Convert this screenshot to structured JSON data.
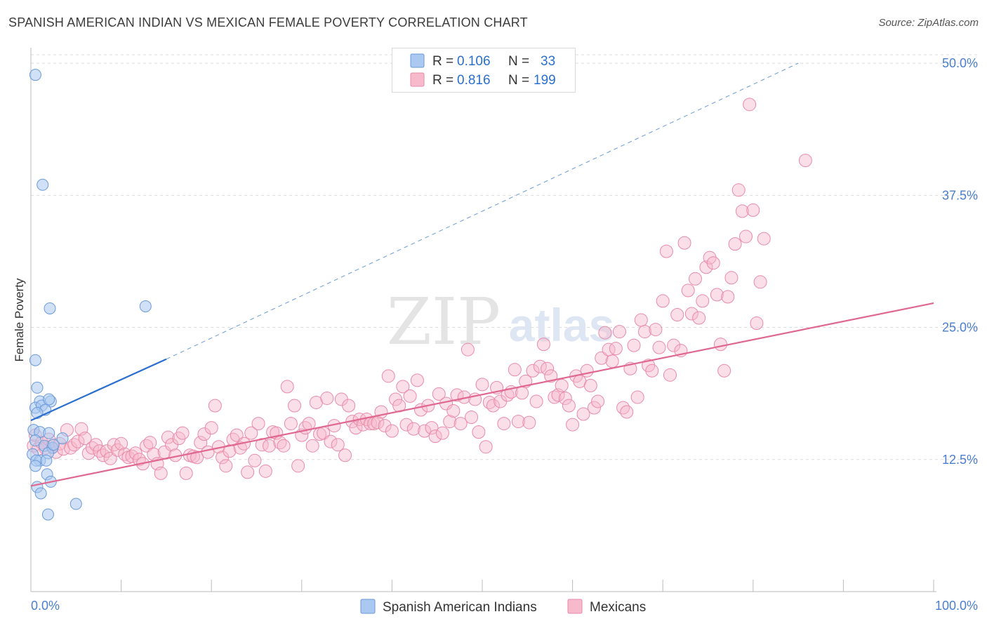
{
  "title": "SPANISH AMERICAN INDIAN VS MEXICAN FEMALE POVERTY CORRELATION CHART",
  "source": "Source: ZipAtlas.com",
  "watermark": {
    "zip": "ZIP",
    "atlas": "atlas"
  },
  "legend": {
    "rows": [
      {
        "r_label": "R =",
        "r_value": "0.106",
        "n_label": "N =",
        "n_value": "33"
      },
      {
        "r_label": "R =",
        "r_value": "0.816",
        "n_label": "N =",
        "n_value": "199"
      }
    ]
  },
  "colors": {
    "blue_fill": "#aac8f0",
    "blue_stroke": "#6a9ad8",
    "blue_line": "#2a6fd0",
    "pink_fill": "#f7b9cc",
    "pink_stroke": "#e98aa8",
    "pink_line": "#e06890",
    "tick_label": "#4a7fcf",
    "grid": "#dcdcdc"
  },
  "chart_data": {
    "type": "scatter",
    "title": "SPANISH AMERICAN INDIAN VS MEXICAN FEMALE POVERTY CORRELATION CHART",
    "xlabel": "",
    "ylabel": "Female Poverty",
    "xlim": [
      0,
      100
    ],
    "ylim": [
      0,
      52
    ],
    "x_tick_labels": [
      "0.0%",
      "100.0%"
    ],
    "y_ticks": [
      12.5,
      25.0,
      37.5,
      50.0
    ],
    "y_tick_labels": [
      "12.5%",
      "25.0%",
      "37.5%",
      "50.0%"
    ],
    "grid": true,
    "series": [
      {
        "name": "Spanish American Indians",
        "R": 0.106,
        "N": 33,
        "trend_solid": [
          [
            0,
            16.2
          ],
          [
            15,
            22.0
          ]
        ],
        "trend_dashed": [
          [
            15,
            22.0
          ],
          [
            85,
            50.0
          ]
        ],
        "points": [
          [
            0.5,
            48.9
          ],
          [
            1.3,
            38.5
          ],
          [
            2.1,
            26.8
          ],
          [
            12.7,
            27.0
          ],
          [
            0.5,
            21.9
          ],
          [
            0.7,
            19.3
          ],
          [
            1.0,
            18.0
          ],
          [
            2.2,
            18.0
          ],
          [
            0.5,
            17.4
          ],
          [
            1.2,
            17.6
          ],
          [
            1.6,
            17.2
          ],
          [
            2.0,
            18.2
          ],
          [
            0.7,
            16.9
          ],
          [
            0.3,
            15.3
          ],
          [
            1.0,
            15.1
          ],
          [
            2.0,
            15.0
          ],
          [
            3.5,
            14.5
          ],
          [
            0.5,
            14.3
          ],
          [
            1.5,
            13.8
          ],
          [
            2.4,
            13.6
          ],
          [
            0.2,
            13.0
          ],
          [
            1.9,
            13.1
          ],
          [
            1.0,
            12.4
          ],
          [
            0.6,
            12.4
          ],
          [
            1.7,
            12.4
          ],
          [
            0.5,
            11.9
          ],
          [
            1.8,
            11.1
          ],
          [
            2.2,
            10.4
          ],
          [
            0.7,
            9.9
          ],
          [
            1.1,
            9.3
          ],
          [
            5.0,
            8.3
          ],
          [
            1.9,
            7.3
          ],
          [
            2.5,
            13.9
          ]
        ]
      },
      {
        "name": "Mexicans",
        "R": 0.816,
        "N": 199,
        "trend": [
          [
            0,
            10.0
          ],
          [
            100,
            27.3
          ]
        ],
        "points": [
          [
            0.3,
            13.8
          ],
          [
            0.5,
            14.8
          ],
          [
            0.8,
            13.5
          ],
          [
            1.2,
            14.1
          ],
          [
            1.6,
            13.6
          ],
          [
            2.0,
            14.4
          ],
          [
            2.4,
            13.8
          ],
          [
            2.8,
            13.2
          ],
          [
            3.2,
            14.0
          ],
          [
            3.6,
            13.5
          ],
          [
            4.0,
            15.3
          ],
          [
            4.4,
            13.6
          ],
          [
            4.8,
            13.9
          ],
          [
            5.2,
            14.2
          ],
          [
            5.6,
            15.4
          ],
          [
            6.0,
            14.5
          ],
          [
            6.4,
            13.1
          ],
          [
            6.8,
            13.6
          ],
          [
            7.2,
            13.9
          ],
          [
            7.6,
            13.3
          ],
          [
            8.0,
            12.9
          ],
          [
            8.4,
            13.3
          ],
          [
            8.8,
            12.6
          ],
          [
            9.2,
            13.9
          ],
          [
            9.6,
            13.4
          ],
          [
            10.0,
            14.0
          ],
          [
            10.4,
            13.0
          ],
          [
            10.8,
            12.7
          ],
          [
            11.2,
            12.8
          ],
          [
            11.6,
            13.1
          ],
          [
            12.0,
            12.5
          ],
          [
            12.4,
            12.1
          ],
          [
            12.8,
            13.8
          ],
          [
            13.2,
            14.1
          ],
          [
            13.6,
            13.0
          ],
          [
            14.0,
            12.1
          ],
          [
            14.4,
            11.2
          ],
          [
            14.8,
            13.2
          ],
          [
            15.2,
            14.6
          ],
          [
            15.6,
            13.9
          ],
          [
            16.0,
            12.9
          ],
          [
            16.4,
            14.5
          ],
          [
            16.8,
            15.0
          ],
          [
            17.2,
            11.2
          ],
          [
            17.6,
            12.9
          ],
          [
            18.0,
            12.8
          ],
          [
            18.4,
            12.7
          ],
          [
            18.8,
            14.1
          ],
          [
            19.2,
            14.9
          ],
          [
            19.6,
            13.2
          ],
          [
            20.0,
            15.5
          ],
          [
            20.4,
            17.6
          ],
          [
            20.8,
            13.7
          ],
          [
            21.2,
            12.7
          ],
          [
            21.6,
            11.9
          ],
          [
            22.0,
            13.3
          ],
          [
            22.4,
            14.4
          ],
          [
            22.8,
            14.8
          ],
          [
            23.2,
            13.6
          ],
          [
            23.6,
            14.0
          ],
          [
            24.0,
            11.3
          ],
          [
            24.4,
            15.0
          ],
          [
            24.8,
            12.4
          ],
          [
            25.2,
            15.9
          ],
          [
            25.6,
            13.9
          ],
          [
            26.0,
            11.4
          ],
          [
            26.4,
            13.8
          ],
          [
            26.8,
            15.1
          ],
          [
            27.2,
            15.0
          ],
          [
            27.6,
            14.1
          ],
          [
            28.0,
            13.8
          ],
          [
            28.4,
            19.4
          ],
          [
            28.8,
            15.9
          ],
          [
            29.2,
            17.6
          ],
          [
            29.6,
            11.9
          ],
          [
            30.0,
            14.8
          ],
          [
            30.4,
            15.5
          ],
          [
            30.8,
            15.9
          ],
          [
            31.2,
            13.8
          ],
          [
            31.6,
            17.9
          ],
          [
            32.0,
            14.9
          ],
          [
            32.4,
            15.0
          ],
          [
            32.8,
            18.3
          ],
          [
            33.2,
            14.2
          ],
          [
            33.6,
            15.7
          ],
          [
            34.0,
            13.9
          ],
          [
            34.4,
            18.2
          ],
          [
            34.8,
            12.9
          ],
          [
            35.2,
            17.6
          ],
          [
            35.6,
            16.1
          ],
          [
            36.0,
            15.5
          ],
          [
            36.4,
            16.3
          ],
          [
            36.8,
            15.8
          ],
          [
            37.2,
            16.3
          ],
          [
            37.6,
            15.9
          ],
          [
            38.0,
            15.9
          ],
          [
            38.4,
            16.0
          ],
          [
            38.8,
            17.0
          ],
          [
            39.2,
            15.7
          ],
          [
            39.6,
            20.4
          ],
          [
            40.0,
            15.2
          ],
          [
            40.4,
            18.2
          ],
          [
            40.8,
            17.6
          ],
          [
            41.2,
            19.4
          ],
          [
            41.6,
            15.8
          ],
          [
            42.0,
            18.5
          ],
          [
            42.4,
            15.4
          ],
          [
            42.8,
            20.0
          ],
          [
            43.2,
            17.2
          ],
          [
            43.6,
            15.2
          ],
          [
            44.0,
            17.6
          ],
          [
            44.4,
            15.5
          ],
          [
            44.8,
            14.7
          ],
          [
            45.2,
            18.7
          ],
          [
            45.6,
            15.0
          ],
          [
            46.0,
            17.8
          ],
          [
            46.4,
            16.1
          ],
          [
            46.8,
            17.1
          ],
          [
            47.2,
            18.6
          ],
          [
            47.6,
            15.9
          ],
          [
            48.0,
            18.4
          ],
          [
            48.4,
            22.9
          ],
          [
            48.8,
            16.5
          ],
          [
            49.2,
            18.2
          ],
          [
            49.6,
            15.1
          ],
          [
            50.0,
            19.6
          ],
          [
            50.4,
            13.7
          ],
          [
            50.8,
            17.9
          ],
          [
            51.2,
            17.6
          ],
          [
            51.6,
            19.3
          ],
          [
            52.0,
            18.0
          ],
          [
            52.4,
            15.9
          ],
          [
            52.8,
            18.6
          ],
          [
            53.2,
            18.9
          ],
          [
            53.6,
            21.0
          ],
          [
            54.0,
            16.1
          ],
          [
            54.4,
            18.8
          ],
          [
            54.8,
            19.9
          ],
          [
            55.2,
            16.0
          ],
          [
            55.6,
            20.9
          ],
          [
            56.0,
            18.0
          ],
          [
            56.4,
            21.3
          ],
          [
            56.8,
            23.4
          ],
          [
            57.2,
            21.1
          ],
          [
            57.6,
            20.4
          ],
          [
            58.0,
            18.4
          ],
          [
            58.4,
            18.6
          ],
          [
            58.8,
            19.5
          ],
          [
            59.2,
            18.3
          ],
          [
            59.6,
            17.6
          ],
          [
            60.0,
            15.8
          ],
          [
            60.4,
            20.4
          ],
          [
            60.8,
            19.9
          ],
          [
            61.2,
            16.8
          ],
          [
            61.6,
            20.9
          ],
          [
            62.0,
            19.5
          ],
          [
            62.4,
            17.4
          ],
          [
            62.8,
            18.0
          ],
          [
            63.2,
            22.1
          ],
          [
            63.6,
            24.5
          ],
          [
            64.0,
            22.9
          ],
          [
            64.4,
            21.8
          ],
          [
            64.8,
            23.0
          ],
          [
            65.2,
            24.6
          ],
          [
            65.6,
            17.4
          ],
          [
            66.0,
            17.0
          ],
          [
            66.4,
            21.1
          ],
          [
            66.8,
            23.3
          ],
          [
            67.2,
            18.4
          ],
          [
            67.6,
            25.7
          ],
          [
            68.0,
            24.6
          ],
          [
            68.4,
            21.4
          ],
          [
            68.8,
            20.9
          ],
          [
            69.2,
            24.8
          ],
          [
            69.6,
            23.1
          ],
          [
            70.0,
            27.5
          ],
          [
            70.4,
            32.2
          ],
          [
            70.8,
            20.5
          ],
          [
            71.2,
            23.3
          ],
          [
            71.6,
            26.2
          ],
          [
            72.0,
            22.8
          ],
          [
            72.4,
            33.0
          ],
          [
            72.8,
            28.5
          ],
          [
            73.2,
            26.3
          ],
          [
            73.6,
            29.6
          ],
          [
            74.0,
            25.9
          ],
          [
            74.4,
            27.5
          ],
          [
            74.8,
            30.7
          ],
          [
            75.2,
            31.6
          ],
          [
            75.6,
            31.1
          ],
          [
            76.0,
            28.1
          ],
          [
            76.4,
            23.4
          ],
          [
            76.8,
            20.9
          ],
          [
            77.2,
            27.9
          ],
          [
            77.6,
            29.7
          ],
          [
            78.0,
            32.9
          ],
          [
            78.4,
            38.0
          ],
          [
            78.8,
            36.0
          ],
          [
            79.2,
            33.6
          ],
          [
            79.6,
            46.1
          ],
          [
            80.0,
            36.1
          ],
          [
            80.4,
            25.4
          ],
          [
            80.8,
            29.3
          ],
          [
            81.2,
            33.4
          ],
          [
            85.8,
            40.8
          ]
        ]
      }
    ]
  }
}
